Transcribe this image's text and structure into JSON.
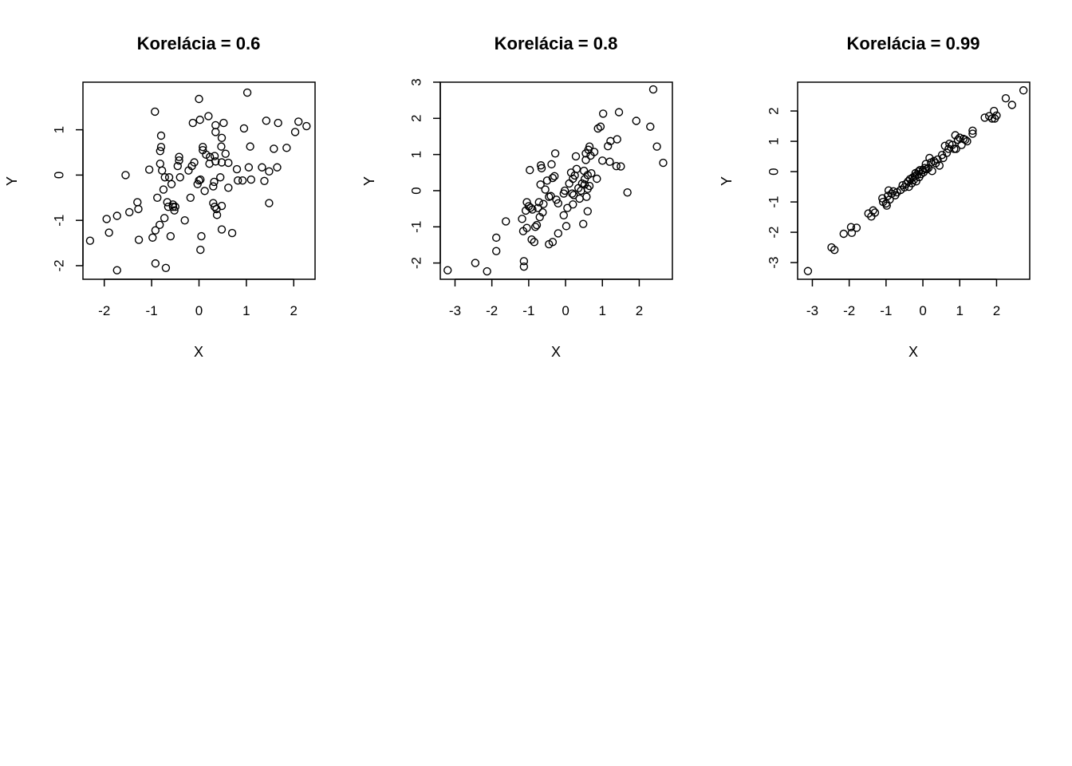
{
  "chart_data": [
    {
      "type": "scatter",
      "title": "Korelácia = 0.6",
      "xlabel": "X",
      "ylabel": "Y",
      "xlim": [
        -2.45,
        2.45
      ],
      "ylim": [
        -2.3,
        2.05
      ],
      "xticks": [
        -2,
        -1,
        0,
        1,
        2
      ],
      "yticks": [
        -2,
        -1,
        0,
        1
      ],
      "grid": false,
      "points": [
        [
          -2.3,
          -1.45
        ],
        [
          -1.95,
          -0.97
        ],
        [
          -1.9,
          -1.27
        ],
        [
          -1.73,
          -0.9
        ],
        [
          -1.73,
          -2.1
        ],
        [
          -1.55,
          0.0
        ],
        [
          -1.47,
          -0.82
        ],
        [
          -1.3,
          -0.6
        ],
        [
          -1.28,
          -0.75
        ],
        [
          -1.27,
          -1.43
        ],
        [
          -1.05,
          0.12
        ],
        [
          -0.98,
          -1.38
        ],
        [
          -0.93,
          1.4
        ],
        [
          -0.92,
          -1.22
        ],
        [
          -0.92,
          -1.95
        ],
        [
          -0.88,
          -0.5
        ],
        [
          -0.83,
          -1.1
        ],
        [
          -0.82,
          0.53
        ],
        [
          -0.8,
          0.62
        ],
        [
          -0.8,
          0.87
        ],
        [
          -0.78,
          0.1
        ],
        [
          -0.82,
          0.25
        ],
        [
          -0.75,
          -0.32
        ],
        [
          -0.73,
          -0.95
        ],
        [
          -0.72,
          -0.05
        ],
        [
          -0.7,
          -2.05
        ],
        [
          -0.67,
          -0.6
        ],
        [
          -0.65,
          -0.7
        ],
        [
          -0.63,
          -0.05
        ],
        [
          -0.6,
          -1.35
        ],
        [
          -0.58,
          -0.2
        ],
        [
          -0.55,
          -0.7
        ],
        [
          -0.55,
          -0.65
        ],
        [
          -0.52,
          -0.78
        ],
        [
          -0.5,
          -0.7
        ],
        [
          -0.45,
          0.2
        ],
        [
          -0.42,
          0.4
        ],
        [
          -0.42,
          0.32
        ],
        [
          -0.4,
          -0.05
        ],
        [
          -0.3,
          -1.0
        ],
        [
          -0.22,
          0.1
        ],
        [
          -0.18,
          -0.5
        ],
        [
          -0.15,
          0.2
        ],
        [
          -0.13,
          1.15
        ],
        [
          -0.1,
          0.28
        ],
        [
          -0.03,
          -0.2
        ],
        [
          0.0,
          1.68
        ],
        [
          0.0,
          -0.12
        ],
        [
          0.02,
          1.22
        ],
        [
          0.03,
          -0.1
        ],
        [
          0.03,
          -1.65
        ],
        [
          0.05,
          -1.35
        ],
        [
          0.08,
          0.62
        ],
        [
          0.08,
          0.55
        ],
        [
          0.12,
          -0.35
        ],
        [
          0.15,
          0.45
        ],
        [
          0.2,
          1.3
        ],
        [
          0.22,
          0.25
        ],
        [
          0.23,
          0.4
        ],
        [
          0.3,
          -0.25
        ],
        [
          0.3,
          -0.62
        ],
        [
          0.32,
          -0.15
        ],
        [
          0.33,
          0.42
        ],
        [
          0.33,
          -0.7
        ],
        [
          0.35,
          1.1
        ],
        [
          0.35,
          0.95
        ],
        [
          0.35,
          0.3
        ],
        [
          0.37,
          -0.75
        ],
        [
          0.38,
          -0.88
        ],
        [
          0.45,
          -0.05
        ],
        [
          0.47,
          0.63
        ],
        [
          0.48,
          0.82
        ],
        [
          0.48,
          0.28
        ],
        [
          0.48,
          -0.68
        ],
        [
          0.48,
          -1.2
        ],
        [
          0.52,
          1.15
        ],
        [
          0.56,
          0.47
        ],
        [
          0.62,
          -0.28
        ],
        [
          0.62,
          0.27
        ],
        [
          0.7,
          -1.28
        ],
        [
          0.8,
          0.13
        ],
        [
          0.82,
          -0.12
        ],
        [
          0.92,
          -0.12
        ],
        [
          0.95,
          1.03
        ],
        [
          1.02,
          1.82
        ],
        [
          1.05,
          0.17
        ],
        [
          1.08,
          0.63
        ],
        [
          1.1,
          -0.1
        ],
        [
          1.33,
          0.17
        ],
        [
          1.38,
          -0.13
        ],
        [
          1.42,
          1.2
        ],
        [
          1.48,
          -0.62
        ],
        [
          1.48,
          0.08
        ],
        [
          1.58,
          0.58
        ],
        [
          1.65,
          0.17
        ],
        [
          1.67,
          1.15
        ],
        [
          1.85,
          0.6
        ],
        [
          2.03,
          0.95
        ],
        [
          2.1,
          1.18
        ],
        [
          2.27,
          1.08
        ]
      ]
    },
    {
      "type": "scatter",
      "title": "Korelácia = 0.8",
      "xlabel": "X",
      "ylabel": "Y",
      "xlim": [
        -3.4,
        2.9
      ],
      "ylim": [
        -2.45,
        3.0
      ],
      "xticks": [
        -3,
        -2,
        -1,
        0,
        1,
        2
      ],
      "yticks": [
        -2,
        -1,
        0,
        1,
        2,
        3
      ],
      "grid": false,
      "points": [
        [
          -3.2,
          -2.2
        ],
        [
          -2.45,
          -2.0
        ],
        [
          -2.13,
          -2.23
        ],
        [
          -1.88,
          -1.3
        ],
        [
          -1.88,
          -1.67
        ],
        [
          -1.62,
          -0.85
        ],
        [
          -1.18,
          -0.78
        ],
        [
          -1.15,
          -1.12
        ],
        [
          -1.13,
          -1.95
        ],
        [
          -1.13,
          -2.1
        ],
        [
          -1.08,
          -0.55
        ],
        [
          -1.05,
          -0.32
        ],
        [
          -1.05,
          -1.03
        ],
        [
          -1.0,
          -0.43
        ],
        [
          -0.97,
          0.57
        ],
        [
          -0.95,
          -0.47
        ],
        [
          -0.92,
          -1.35
        ],
        [
          -0.9,
          -0.52
        ],
        [
          -0.85,
          -1.42
        ],
        [
          -0.82,
          -1.0
        ],
        [
          -0.78,
          -0.95
        ],
        [
          -0.75,
          -0.48
        ],
        [
          -0.72,
          -0.32
        ],
        [
          -0.7,
          -0.73
        ],
        [
          -0.68,
          0.17
        ],
        [
          -0.67,
          0.7
        ],
        [
          -0.65,
          0.62
        ],
        [
          -0.62,
          -0.6
        ],
        [
          -0.6,
          -0.37
        ],
        [
          -0.55,
          0.03
        ],
        [
          -0.5,
          0.28
        ],
        [
          -0.45,
          -0.17
        ],
        [
          -0.45,
          -1.48
        ],
        [
          -0.4,
          -0.15
        ],
        [
          -0.38,
          0.73
        ],
        [
          -0.35,
          -1.42
        ],
        [
          -0.35,
          0.35
        ],
        [
          -0.3,
          0.4
        ],
        [
          -0.28,
          1.03
        ],
        [
          -0.25,
          -0.25
        ],
        [
          -0.2,
          -1.18
        ],
        [
          -0.2,
          -0.35
        ],
        [
          -0.05,
          -0.68
        ],
        [
          -0.05,
          -0.08
        ],
        [
          -0.02,
          0.0
        ],
        [
          0.02,
          -0.98
        ],
        [
          0.05,
          -0.48
        ],
        [
          0.1,
          0.2
        ],
        [
          0.15,
          0.5
        ],
        [
          0.18,
          -0.08
        ],
        [
          0.2,
          -0.38
        ],
        [
          0.2,
          0.33
        ],
        [
          0.22,
          -0.12
        ],
        [
          0.25,
          0.42
        ],
        [
          0.28,
          0.95
        ],
        [
          0.3,
          0.6
        ],
        [
          0.35,
          0.07
        ],
        [
          0.38,
          -0.22
        ],
        [
          0.42,
          0.0
        ],
        [
          0.45,
          0.2
        ],
        [
          0.48,
          -0.92
        ],
        [
          0.5,
          0.55
        ],
        [
          0.52,
          0.17
        ],
        [
          0.52,
          0.32
        ],
        [
          0.55,
          0.85
        ],
        [
          0.55,
          1.03
        ],
        [
          0.57,
          -0.17
        ],
        [
          0.6,
          0.05
        ],
        [
          0.6,
          0.43
        ],
        [
          0.6,
          -0.57
        ],
        [
          0.62,
          1.13
        ],
        [
          0.65,
          0.13
        ],
        [
          0.65,
          1.22
        ],
        [
          0.68,
          0.97
        ],
        [
          0.7,
          0.48
        ],
        [
          0.78,
          1.07
        ],
        [
          0.85,
          0.33
        ],
        [
          0.88,
          1.72
        ],
        [
          0.95,
          1.77
        ],
        [
          1.0,
          0.83
        ],
        [
          1.02,
          2.13
        ],
        [
          1.15,
          1.23
        ],
        [
          1.2,
          0.8
        ],
        [
          1.22,
          1.37
        ],
        [
          1.38,
          0.68
        ],
        [
          1.4,
          1.42
        ],
        [
          1.45,
          2.17
        ],
        [
          1.5,
          0.67
        ],
        [
          1.68,
          -0.05
        ],
        [
          1.92,
          1.93
        ],
        [
          2.3,
          1.77
        ],
        [
          2.38,
          2.8
        ],
        [
          2.48,
          1.22
        ],
        [
          2.65,
          0.77
        ]
      ]
    },
    {
      "type": "scatter",
      "title": "Korelácia = 0.99",
      "xlabel": "X",
      "ylabel": "Y",
      "xlim": [
        -3.4,
        2.9
      ],
      "ylim": [
        -3.55,
        2.95
      ],
      "xticks": [
        -3,
        -2,
        -1,
        0,
        1,
        2
      ],
      "yticks": [
        -3,
        -2,
        -1,
        0,
        1,
        2
      ],
      "grid": false,
      "points": [
        [
          -3.12,
          -3.28
        ],
        [
          -2.48,
          -2.5
        ],
        [
          -2.4,
          -2.58
        ],
        [
          -2.15,
          -2.05
        ],
        [
          -1.95,
          -1.83
        ],
        [
          -1.93,
          -2.02
        ],
        [
          -1.8,
          -1.85
        ],
        [
          -1.48,
          -1.38
        ],
        [
          -1.4,
          -1.48
        ],
        [
          -1.35,
          -1.28
        ],
        [
          -1.3,
          -1.35
        ],
        [
          -1.1,
          -0.88
        ],
        [
          -1.08,
          -1.0
        ],
        [
          -1.0,
          -1.05
        ],
        [
          -0.98,
          -1.12
        ],
        [
          -0.95,
          -0.8
        ],
        [
          -0.93,
          -0.62
        ],
        [
          -0.9,
          -0.92
        ],
        [
          -0.85,
          -0.73
        ],
        [
          -0.8,
          -0.65
        ],
        [
          -0.75,
          -0.78
        ],
        [
          -0.7,
          -0.68
        ],
        [
          -0.6,
          -0.6
        ],
        [
          -0.55,
          -0.45
        ],
        [
          -0.5,
          -0.52
        ],
        [
          -0.45,
          -0.4
        ],
        [
          -0.4,
          -0.32
        ],
        [
          -0.38,
          -0.5
        ],
        [
          -0.35,
          -0.25
        ],
        [
          -0.3,
          -0.38
        ],
        [
          -0.28,
          -0.2
        ],
        [
          -0.25,
          -0.28
        ],
        [
          -0.22,
          -0.15
        ],
        [
          -0.2,
          -0.05
        ],
        [
          -0.18,
          -0.32
        ],
        [
          -0.15,
          -0.1
        ],
        [
          -0.12,
          0.0
        ],
        [
          -0.1,
          -0.18
        ],
        [
          -0.08,
          0.05
        ],
        [
          -0.05,
          -0.08
        ],
        [
          0.0,
          0.05
        ],
        [
          0.02,
          -0.02
        ],
        [
          0.05,
          0.12
        ],
        [
          0.08,
          0.25
        ],
        [
          0.1,
          0.08
        ],
        [
          0.15,
          0.12
        ],
        [
          0.18,
          0.45
        ],
        [
          0.22,
          0.3
        ],
        [
          0.25,
          0.02
        ],
        [
          0.3,
          0.35
        ],
        [
          0.35,
          0.28
        ],
        [
          0.4,
          0.4
        ],
        [
          0.45,
          0.2
        ],
        [
          0.52,
          0.55
        ],
        [
          0.55,
          0.45
        ],
        [
          0.6,
          0.85
        ],
        [
          0.65,
          0.62
        ],
        [
          0.7,
          0.75
        ],
        [
          0.72,
          0.92
        ],
        [
          0.8,
          0.88
        ],
        [
          0.85,
          0.75
        ],
        [
          0.88,
          1.2
        ],
        [
          0.9,
          0.75
        ],
        [
          0.95,
          1.05
        ],
        [
          1.0,
          1.12
        ],
        [
          1.05,
          0.88
        ],
        [
          1.1,
          1.08
        ],
        [
          1.15,
          1.05
        ],
        [
          1.2,
          1.0
        ],
        [
          1.35,
          1.25
        ],
        [
          1.35,
          1.35
        ],
        [
          1.68,
          1.78
        ],
        [
          1.8,
          1.83
        ],
        [
          1.88,
          1.75
        ],
        [
          1.93,
          2.0
        ],
        [
          1.95,
          1.75
        ],
        [
          2.0,
          1.85
        ],
        [
          2.25,
          2.42
        ],
        [
          2.42,
          2.2
        ],
        [
          2.73,
          2.68
        ]
      ]
    }
  ]
}
